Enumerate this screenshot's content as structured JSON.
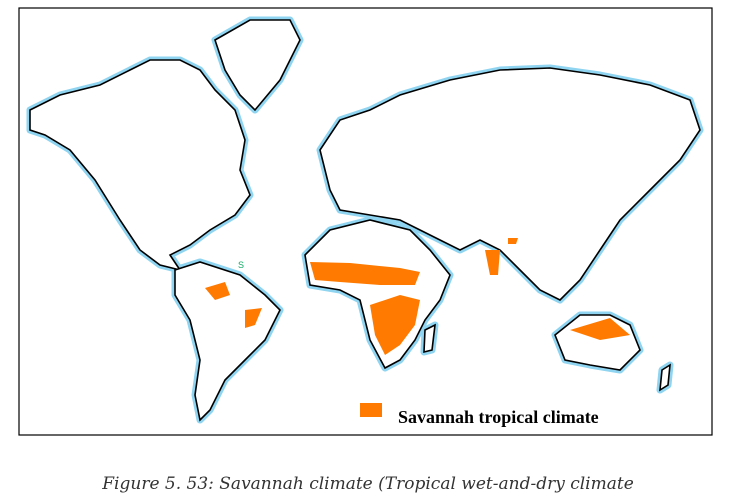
{
  "map": {
    "legend": {
      "label": "Savannah tropical climate"
    },
    "labels": [
      "S"
    ]
  },
  "caption": "Figure 5. 53: Savannah climate (Tropical wet-and-dry climate"
}
